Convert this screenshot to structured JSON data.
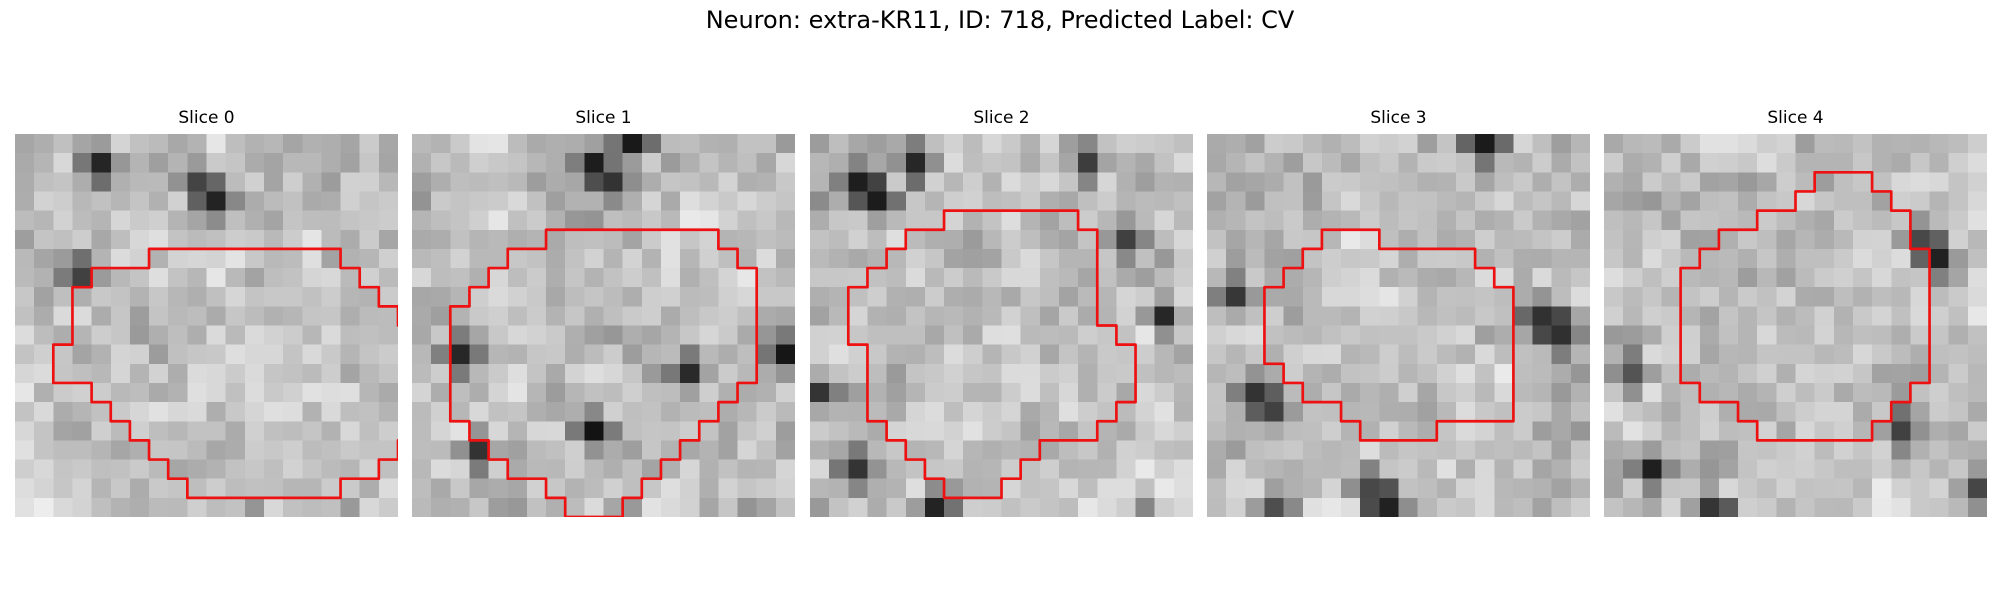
{
  "figure": {
    "title": "Neuron: extra-KR11, ID: 718, Predicted Label: CV"
  },
  "panels": [
    {
      "title": "Slice 0",
      "seed": 11,
      "darkSpots": [
        [
          9,
          2
        ],
        [
          10,
          3
        ],
        [
          4,
          1
        ],
        [
          3,
          7
        ],
        [
          7,
          21
        ],
        [
          12,
          20
        ],
        [
          16,
          22
        ],
        [
          17,
          20
        ],
        [
          15,
          21
        ]
      ],
      "outline": [
        [
          4,
          13
        ],
        [
          4,
          14
        ],
        [
          5,
          14
        ],
        [
          5,
          15
        ],
        [
          6,
          15
        ],
        [
          6,
          16
        ],
        [
          7,
          16
        ],
        [
          7,
          17
        ],
        [
          8,
          17
        ],
        [
          8,
          18
        ],
        [
          9,
          18
        ],
        [
          9,
          19
        ],
        [
          10,
          19
        ],
        [
          11,
          19
        ],
        [
          12,
          19
        ],
        [
          13,
          19
        ],
        [
          14,
          19
        ],
        [
          15,
          19
        ],
        [
          16,
          19
        ],
        [
          17,
          19
        ],
        [
          17,
          18
        ],
        [
          18,
          18
        ],
        [
          19,
          18
        ],
        [
          19,
          17
        ],
        [
          20,
          17
        ],
        [
          20,
          16
        ],
        [
          21,
          16
        ],
        [
          21,
          15
        ],
        [
          21,
          14
        ],
        [
          21,
          13
        ],
        [
          21,
          12
        ],
        [
          21,
          11
        ],
        [
          21,
          10
        ],
        [
          20,
          10
        ],
        [
          20,
          9
        ],
        [
          19,
          9
        ],
        [
          19,
          8
        ],
        [
          18,
          8
        ],
        [
          18,
          7
        ],
        [
          17,
          7
        ],
        [
          17,
          6
        ],
        [
          16,
          6
        ],
        [
          15,
          6
        ],
        [
          14,
          6
        ],
        [
          13,
          6
        ],
        [
          12,
          6
        ],
        [
          11,
          6
        ],
        [
          10,
          6
        ],
        [
          9,
          6
        ],
        [
          8,
          6
        ],
        [
          7,
          6
        ],
        [
          7,
          7
        ],
        [
          6,
          7
        ],
        [
          5,
          7
        ],
        [
          4,
          7
        ],
        [
          4,
          8
        ],
        [
          3,
          8
        ],
        [
          3,
          9
        ],
        [
          3,
          10
        ],
        [
          3,
          11
        ],
        [
          2,
          11
        ],
        [
          2,
          12
        ],
        [
          2,
          13
        ],
        [
          3,
          13
        ]
      ]
    },
    {
      "title": "Slice 1",
      "seed": 23,
      "darkSpots": [
        [
          9,
          1
        ],
        [
          10,
          2
        ],
        [
          11,
          0
        ],
        [
          2,
          11
        ],
        [
          3,
          16
        ],
        [
          9,
          15
        ],
        [
          14,
          12
        ],
        [
          17,
          21
        ],
        [
          5,
          21
        ],
        [
          19,
          11
        ]
      ],
      "outline": [
        [
          2,
          9
        ],
        [
          3,
          9
        ],
        [
          3,
          8
        ],
        [
          4,
          8
        ],
        [
          4,
          7
        ],
        [
          5,
          7
        ],
        [
          5,
          6
        ],
        [
          6,
          6
        ],
        [
          7,
          6
        ],
        [
          7,
          5
        ],
        [
          8,
          5
        ],
        [
          9,
          5
        ],
        [
          10,
          5
        ],
        [
          11,
          5
        ],
        [
          12,
          5
        ],
        [
          13,
          5
        ],
        [
          14,
          5
        ],
        [
          15,
          5
        ],
        [
          16,
          5
        ],
        [
          16,
          6
        ],
        [
          17,
          6
        ],
        [
          17,
          7
        ],
        [
          18,
          7
        ],
        [
          18,
          8
        ],
        [
          18,
          9
        ],
        [
          18,
          10
        ],
        [
          18,
          11
        ],
        [
          18,
          12
        ],
        [
          18,
          13
        ],
        [
          17,
          13
        ],
        [
          17,
          14
        ],
        [
          16,
          14
        ],
        [
          16,
          15
        ],
        [
          15,
          15
        ],
        [
          15,
          16
        ],
        [
          14,
          16
        ],
        [
          14,
          17
        ],
        [
          13,
          17
        ],
        [
          13,
          18
        ],
        [
          12,
          18
        ],
        [
          12,
          19
        ],
        [
          11,
          19
        ],
        [
          11,
          20
        ],
        [
          10,
          20
        ],
        [
          9,
          20
        ],
        [
          8,
          20
        ],
        [
          8,
          19
        ],
        [
          7,
          19
        ],
        [
          7,
          18
        ],
        [
          6,
          18
        ],
        [
          5,
          18
        ],
        [
          5,
          17
        ],
        [
          4,
          17
        ],
        [
          4,
          16
        ],
        [
          3,
          16
        ],
        [
          3,
          15
        ],
        [
          2,
          15
        ],
        [
          2,
          14
        ],
        [
          2,
          13
        ],
        [
          2,
          12
        ],
        [
          2,
          11
        ],
        [
          2,
          10
        ]
      ]
    },
    {
      "title": "Slice 2",
      "seed": 37,
      "darkSpots": [
        [
          2,
          2
        ],
        [
          3,
          3
        ],
        [
          5,
          1
        ],
        [
          14,
          1
        ],
        [
          16,
          5
        ],
        [
          18,
          9
        ],
        [
          0,
          13
        ],
        [
          2,
          17
        ],
        [
          6,
          19
        ],
        [
          17,
          20
        ]
      ],
      "outline": [
        [
          3,
          7
        ],
        [
          4,
          7
        ],
        [
          4,
          6
        ],
        [
          5,
          6
        ],
        [
          5,
          5
        ],
        [
          6,
          5
        ],
        [
          7,
          5
        ],
        [
          7,
          4
        ],
        [
          8,
          4
        ],
        [
          9,
          4
        ],
        [
          10,
          4
        ],
        [
          11,
          4
        ],
        [
          12,
          4
        ],
        [
          13,
          4
        ],
        [
          14,
          4
        ],
        [
          14,
          5
        ],
        [
          15,
          5
        ],
        [
          15,
          6
        ],
        [
          15,
          7
        ],
        [
          15,
          8
        ],
        [
          15,
          9
        ],
        [
          15,
          10
        ],
        [
          16,
          10
        ],
        [
          16,
          11
        ],
        [
          17,
          11
        ],
        [
          17,
          12
        ],
        [
          17,
          13
        ],
        [
          17,
          14
        ],
        [
          16,
          14
        ],
        [
          16,
          15
        ],
        [
          15,
          15
        ],
        [
          15,
          16
        ],
        [
          14,
          16
        ],
        [
          13,
          16
        ],
        [
          12,
          16
        ],
        [
          12,
          17
        ],
        [
          11,
          17
        ],
        [
          11,
          18
        ],
        [
          10,
          18
        ],
        [
          10,
          19
        ],
        [
          9,
          19
        ],
        [
          8,
          19
        ],
        [
          7,
          19
        ],
        [
          7,
          18
        ],
        [
          6,
          18
        ],
        [
          6,
          17
        ],
        [
          5,
          17
        ],
        [
          5,
          16
        ],
        [
          4,
          16
        ],
        [
          4,
          15
        ],
        [
          3,
          15
        ],
        [
          3,
          14
        ],
        [
          3,
          13
        ],
        [
          3,
          12
        ],
        [
          3,
          11
        ],
        [
          2,
          11
        ],
        [
          2,
          10
        ],
        [
          2,
          9
        ],
        [
          2,
          8
        ],
        [
          3,
          8
        ]
      ]
    },
    {
      "title": "Slice 3",
      "seed": 53,
      "darkSpots": [
        [
          1,
          8
        ],
        [
          2,
          13
        ],
        [
          3,
          14
        ],
        [
          17,
          9
        ],
        [
          18,
          10
        ],
        [
          8,
          18
        ],
        [
          9,
          19
        ],
        [
          3,
          19
        ],
        [
          14,
          0
        ]
      ],
      "outline": [
        [
          4,
          7
        ],
        [
          5,
          7
        ],
        [
          5,
          6
        ],
        [
          6,
          6
        ],
        [
          6,
          5
        ],
        [
          7,
          5
        ],
        [
          8,
          5
        ],
        [
          9,
          5
        ],
        [
          9,
          6
        ],
        [
          10,
          6
        ],
        [
          11,
          6
        ],
        [
          12,
          6
        ],
        [
          13,
          6
        ],
        [
          14,
          6
        ],
        [
          14,
          7
        ],
        [
          15,
          7
        ],
        [
          15,
          8
        ],
        [
          16,
          8
        ],
        [
          16,
          9
        ],
        [
          16,
          10
        ],
        [
          16,
          11
        ],
        [
          16,
          12
        ],
        [
          16,
          13
        ],
        [
          16,
          14
        ],
        [
          16,
          15
        ],
        [
          15,
          15
        ],
        [
          14,
          15
        ],
        [
          13,
          15
        ],
        [
          12,
          15
        ],
        [
          12,
          16
        ],
        [
          11,
          16
        ],
        [
          10,
          16
        ],
        [
          9,
          16
        ],
        [
          8,
          16
        ],
        [
          8,
          15
        ],
        [
          7,
          15
        ],
        [
          7,
          14
        ],
        [
          6,
          14
        ],
        [
          5,
          14
        ],
        [
          5,
          13
        ],
        [
          4,
          13
        ],
        [
          4,
          12
        ],
        [
          3,
          12
        ],
        [
          3,
          11
        ],
        [
          3,
          10
        ],
        [
          3,
          9
        ],
        [
          3,
          8
        ],
        [
          4,
          8
        ]
      ]
    },
    {
      "title": "Slice 4",
      "seed": 71,
      "darkSpots": [
        [
          5,
          19
        ],
        [
          6,
          20
        ],
        [
          1,
          12
        ],
        [
          16,
          5
        ],
        [
          17,
          6
        ],
        [
          15,
          15
        ],
        [
          2,
          17
        ],
        [
          19,
          18
        ]
      ],
      "outline": [
        [
          4,
          7
        ],
        [
          5,
          7
        ],
        [
          5,
          6
        ],
        [
          6,
          6
        ],
        [
          6,
          5
        ],
        [
          7,
          5
        ],
        [
          8,
          5
        ],
        [
          8,
          4
        ],
        [
          9,
          4
        ],
        [
          10,
          4
        ],
        [
          10,
          3
        ],
        [
          11,
          3
        ],
        [
          11,
          2
        ],
        [
          12,
          2
        ],
        [
          13,
          2
        ],
        [
          14,
          2
        ],
        [
          14,
          3
        ],
        [
          15,
          3
        ],
        [
          15,
          4
        ],
        [
          16,
          4
        ],
        [
          16,
          5
        ],
        [
          16,
          6
        ],
        [
          17,
          6
        ],
        [
          17,
          7
        ],
        [
          17,
          8
        ],
        [
          17,
          9
        ],
        [
          17,
          10
        ],
        [
          17,
          11
        ],
        [
          17,
          12
        ],
        [
          17,
          13
        ],
        [
          16,
          13
        ],
        [
          16,
          14
        ],
        [
          15,
          14
        ],
        [
          15,
          15
        ],
        [
          14,
          15
        ],
        [
          14,
          16
        ],
        [
          13,
          16
        ],
        [
          12,
          16
        ],
        [
          11,
          16
        ],
        [
          10,
          16
        ],
        [
          9,
          16
        ],
        [
          8,
          16
        ],
        [
          8,
          15
        ],
        [
          7,
          15
        ],
        [
          7,
          14
        ],
        [
          6,
          14
        ],
        [
          5,
          14
        ],
        [
          5,
          13
        ],
        [
          4,
          13
        ],
        [
          4,
          12
        ],
        [
          4,
          11
        ],
        [
          4,
          10
        ],
        [
          4,
          9
        ],
        [
          4,
          8
        ]
      ]
    }
  ],
  "colors": {
    "contour": "#ee1111",
    "background": "#ffffff"
  }
}
